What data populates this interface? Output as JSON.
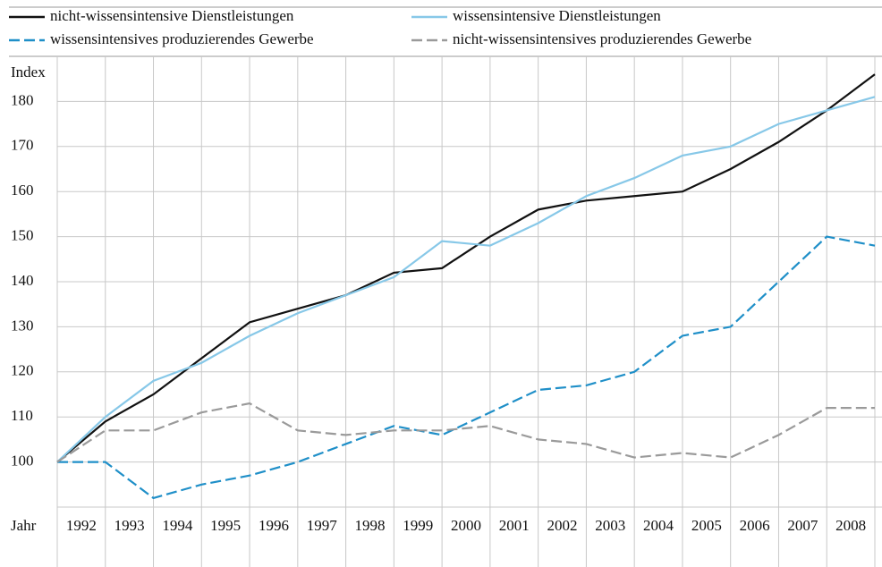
{
  "chart_data": {
    "type": "line",
    "y_label": "Index",
    "x_label": "Jahr",
    "categories": [
      null,
      "1992",
      "1993",
      "1994",
      "1995",
      "1996",
      "1997",
      "1998",
      "1999",
      "2000",
      "2001",
      "2002",
      "2003",
      "2004",
      "2005",
      "2006",
      "2007",
      "2008"
    ],
    "series": [
      {
        "name": "nicht-wissensintensive Dienstleistungen",
        "color": "#111111",
        "dash": false,
        "values": [
          100,
          109,
          115,
          123,
          131,
          134,
          137,
          142,
          143,
          150,
          156,
          158,
          159,
          160,
          165,
          171,
          178,
          186
        ]
      },
      {
        "name": "wissensintensive Dienstleistungen",
        "color": "#87c8e8",
        "dash": false,
        "values": [
          100,
          110,
          118,
          122,
          128,
          133,
          137,
          141,
          149,
          148,
          153,
          159,
          163,
          168,
          170,
          175,
          178,
          181
        ]
      },
      {
        "name": "wissensintensives produzierendes Gewerbe",
        "color": "#1f8fc8",
        "dash": true,
        "values": [
          100,
          100,
          92,
          95,
          97,
          100,
          104,
          108,
          106,
          111,
          116,
          117,
          120,
          128,
          130,
          140,
          150,
          148
        ]
      },
      {
        "name": "nicht-wissensintensives produzierendes Gewerbe",
        "color": "#9a9a9a",
        "dash": true,
        "values": [
          100,
          107,
          107,
          111,
          113,
          107,
          106,
          107,
          107,
          108,
          105,
          104,
          101,
          102,
          101,
          106,
          112,
          112
        ]
      }
    ],
    "ylim": [
      90,
      190
    ],
    "yticks": [
      100,
      110,
      120,
      130,
      140,
      150,
      160,
      170,
      180
    ],
    "grid": true
  }
}
